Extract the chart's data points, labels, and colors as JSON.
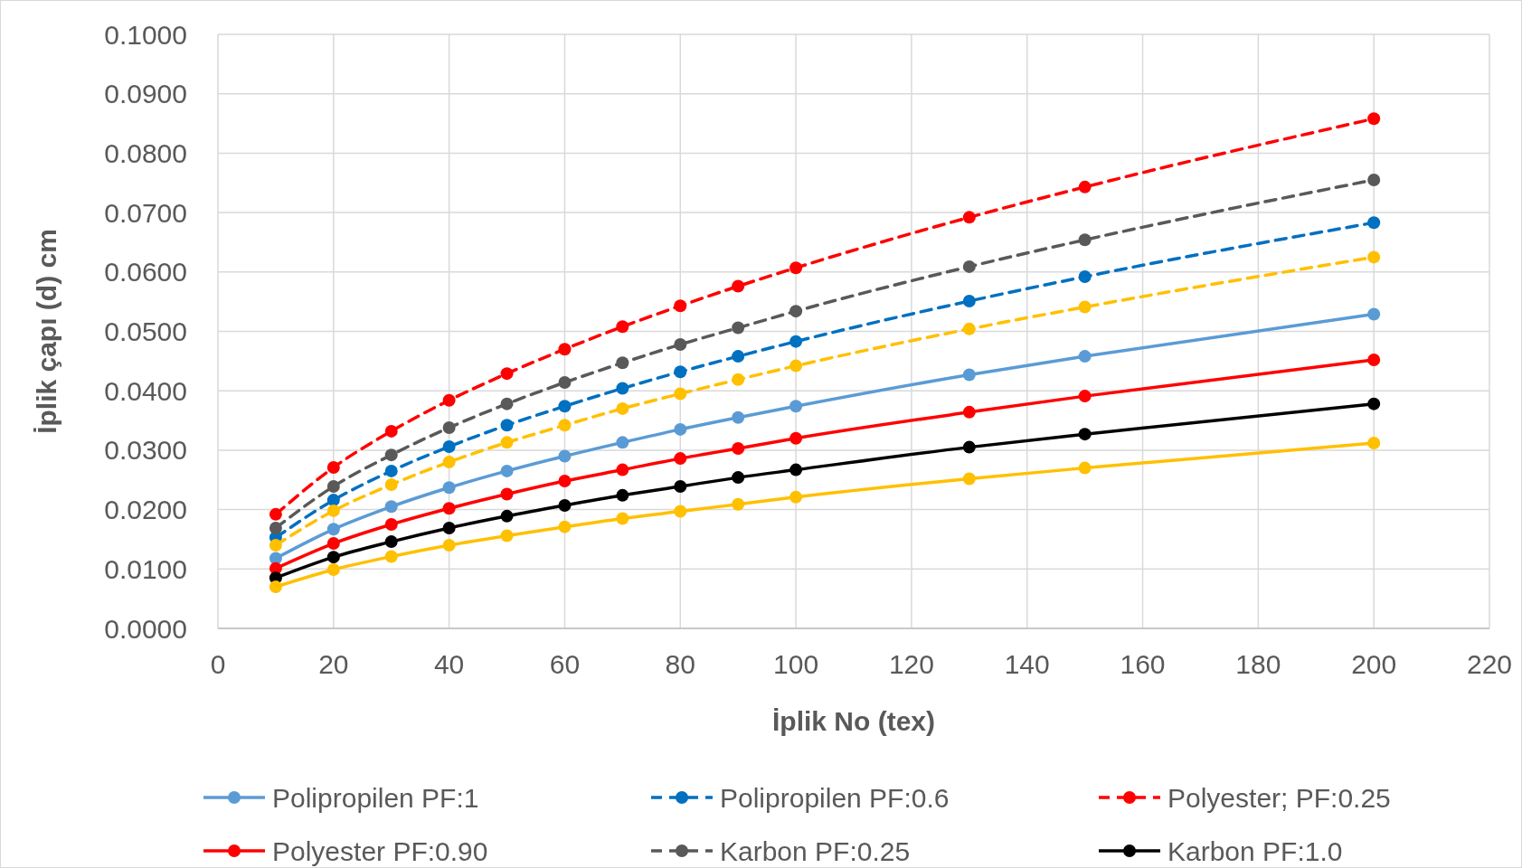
{
  "chart_data": {
    "type": "line",
    "xlabel": "İplik No (tex)",
    "ylabel": "İplik çapı (d) cm",
    "x": [
      10,
      20,
      30,
      40,
      50,
      60,
      70,
      80,
      90,
      100,
      130,
      150,
      200
    ],
    "xlim": [
      0,
      220
    ],
    "xticks": [
      0,
      20,
      40,
      60,
      80,
      100,
      120,
      140,
      160,
      180,
      200,
      220
    ],
    "ylim": [
      0,
      0.1
    ],
    "yticks": [
      {
        "value": 0,
        "label": "0.0000"
      },
      {
        "value": 0.01,
        "label": "0.0100"
      },
      {
        "value": 0.02,
        "label": "0.0200"
      },
      {
        "value": 0.03,
        "label": "0.0300"
      },
      {
        "value": 0.04,
        "label": "0.0400"
      },
      {
        "value": 0.05,
        "label": "0.0500"
      },
      {
        "value": 0.06,
        "label": "0.0600"
      },
      {
        "value": 0.07,
        "label": "0.0700"
      },
      {
        "value": 0.08,
        "label": "0.0800"
      },
      {
        "value": 0.09,
        "label": "0.0900"
      },
      {
        "value": 0.1,
        "label": "0.1000"
      }
    ],
    "grid": true,
    "legend": "bottom",
    "marker": "circle",
    "series": [
      {
        "name": "Polipropilen PF:1",
        "color": "#5b9bd5",
        "line_style": "solid",
        "values": [
          0.0118,
          0.0167,
          0.0205,
          0.0237,
          0.0265,
          0.029,
          0.0313,
          0.0335,
          0.0355,
          0.0374,
          0.0427,
          0.0458,
          0.0529
        ]
      },
      {
        "name": "Polipropilen PF:0.6",
        "color": "#0070c0",
        "line_style": "dashed",
        "values": [
          0.0153,
          0.0216,
          0.0265,
          0.0306,
          0.0342,
          0.0374,
          0.0404,
          0.0432,
          0.0458,
          0.0483,
          0.0551,
          0.0592,
          0.0683
        ]
      },
      {
        "name": "Polyester; PF:0.25",
        "color": "#ff0000",
        "line_style": "dashed",
        "values": [
          0.0192,
          0.0271,
          0.0332,
          0.0384,
          0.0429,
          0.047,
          0.0508,
          0.0543,
          0.0576,
          0.0607,
          0.0692,
          0.0743,
          0.0858
        ]
      },
      {
        "name": "Polyester PF:0.90",
        "color": "#ff0000",
        "line_style": "solid",
        "values": [
          0.0101,
          0.0143,
          0.0175,
          0.0202,
          0.0226,
          0.0248,
          0.0267,
          0.0286,
          0.0303,
          0.032,
          0.0364,
          0.0391,
          0.0452
        ]
      },
      {
        "name": "Karbon PF:0.25",
        "color": "#595959",
        "line_style": "dashed",
        "values": [
          0.0169,
          0.0239,
          0.0292,
          0.0338,
          0.0378,
          0.0414,
          0.0447,
          0.0478,
          0.0506,
          0.0534,
          0.0609,
          0.0654,
          0.0755
        ]
      },
      {
        "name": "Karbon PF:1.0",
        "color": "#000000",
        "line_style": "solid",
        "values": [
          0.0085,
          0.012,
          0.0146,
          0.0169,
          0.0189,
          0.0207,
          0.0224,
          0.0239,
          0.0254,
          0.0267,
          0.0305,
          0.0327,
          0.0378
        ]
      },
      {
        "color": "#ffc000",
        "line_style": "dashed",
        "values": [
          0.014,
          0.0198,
          0.0242,
          0.028,
          0.0313,
          0.0342,
          0.037,
          0.0395,
          0.0419,
          0.0442,
          0.0504,
          0.0541,
          0.0625
        ]
      },
      {
        "color": "#ffc000",
        "line_style": "solid",
        "values": [
          0.007,
          0.0099,
          0.0121,
          0.014,
          0.0156,
          0.0171,
          0.0185,
          0.0197,
          0.0209,
          0.0221,
          0.0252,
          0.027,
          0.0312
        ]
      }
    ]
  }
}
